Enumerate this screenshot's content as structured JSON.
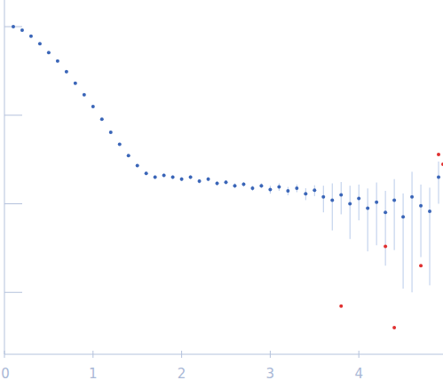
{
  "chart_data": {
    "type": "scatter",
    "xlim": [
      0,
      4.95
    ],
    "xticks": [
      0,
      1,
      2,
      3,
      4
    ],
    "ylim": [
      0.0002,
      2
    ],
    "yticks": [
      0.001,
      0.01,
      0.1,
      1
    ],
    "log": "y",
    "grid": false,
    "tick_labels": "x",
    "series": [
      {
        "color": "#3b66b8",
        "marker": "circle",
        "x": [
          0.1,
          0.2,
          0.3,
          0.4,
          0.5,
          0.6,
          0.7,
          0.8,
          0.9,
          1.0,
          1.1,
          1.2,
          1.3,
          1.4,
          1.5,
          1.6,
          1.7,
          1.8,
          1.9,
          2.0,
          2.1,
          2.2,
          2.3,
          2.4,
          2.5,
          2.6,
          2.7,
          2.8,
          2.9,
          3.0,
          3.1,
          3.2,
          3.3,
          3.4,
          3.5,
          3.6,
          3.7,
          3.8,
          3.9,
          4.0,
          4.1,
          4.2,
          4.3,
          4.4,
          4.5,
          4.6,
          4.7,
          4.8,
          4.9
        ],
        "values": [
          1.0,
          0.91,
          0.78,
          0.64,
          0.51,
          0.41,
          0.31,
          0.23,
          0.17,
          0.125,
          0.09,
          0.064,
          0.047,
          0.035,
          0.027,
          0.022,
          0.02,
          0.021,
          0.02,
          0.019,
          0.02,
          0.018,
          0.019,
          0.017,
          0.0175,
          0.016,
          0.0166,
          0.015,
          0.016,
          0.0145,
          0.0155,
          0.014,
          0.015,
          0.013,
          0.0142,
          0.012,
          0.011,
          0.0126,
          0.01,
          0.0115,
          0.0089,
          0.0104,
          0.008,
          0.011,
          0.0071,
          0.012,
          0.0095,
          0.0082,
          0.02
        ],
        "errors": [
          0.005,
          0.004,
          0.004,
          0.003,
          0.003,
          0.002,
          0.002,
          0.002,
          0.0015,
          0.001,
          0.001,
          0.001,
          0.001,
          0.001,
          0.001,
          0.001,
          0.001,
          0.001,
          0.001,
          0.001,
          0.001,
          0.001,
          0.001,
          0.001,
          0.001,
          0.001,
          0.001,
          0.001,
          0.001,
          0.0015,
          0.0015,
          0.0015,
          0.0015,
          0.002,
          0.002,
          0.004,
          0.006,
          0.005,
          0.006,
          0.005,
          0.006,
          0.007,
          0.006,
          0.008,
          0.006,
          0.011,
          0.007,
          0.007,
          0.01
        ]
      },
      {
        "color": "#e03030",
        "marker": "circle",
        "x": [
          3.8,
          4.3,
          4.4,
          4.7,
          4.9,
          4.95
        ],
        "values": [
          0.0007,
          0.0033,
          0.0004,
          0.002,
          0.036,
          0.028
        ]
      }
    ]
  }
}
